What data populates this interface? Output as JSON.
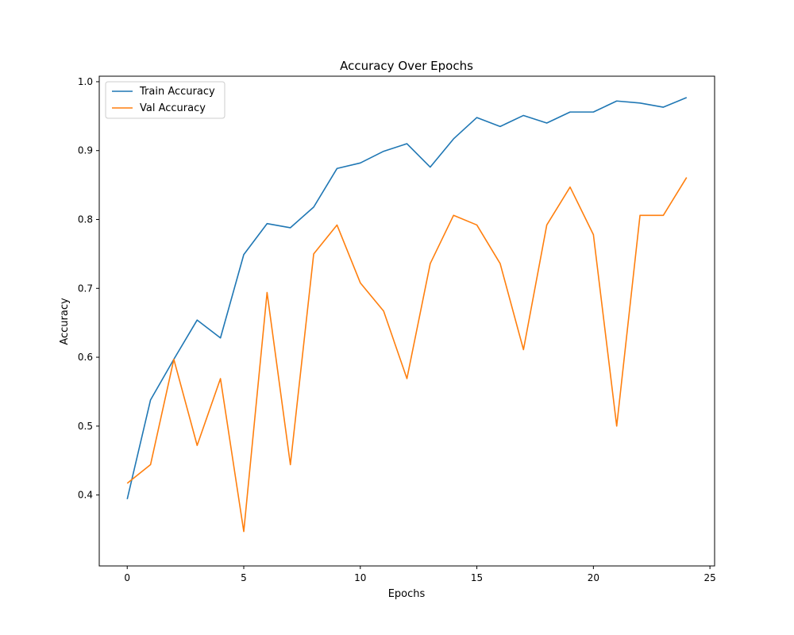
{
  "chart_data": {
    "type": "line",
    "title": "Accuracy Over Epochs",
    "xlabel": "Epochs",
    "ylabel": "Accuracy",
    "xlim": [
      -1.2,
      25.2
    ],
    "ylim": [
      0.297,
      1.008
    ],
    "xticks": [
      0,
      5,
      10,
      15,
      20,
      25
    ],
    "yticks": [
      0.4,
      0.5,
      0.6,
      0.7,
      0.8,
      0.9,
      1.0
    ],
    "grid": false,
    "legend_position": "top-left",
    "x": [
      0,
      1,
      2,
      3,
      4,
      5,
      6,
      7,
      8,
      9,
      10,
      11,
      12,
      13,
      14,
      15,
      16,
      17,
      18,
      19,
      20,
      21,
      22,
      23,
      24
    ],
    "series": [
      {
        "name": "Train Accuracy",
        "color": "#1f77b4",
        "values": [
          0.394,
          0.538,
          0.597,
          0.654,
          0.628,
          0.749,
          0.794,
          0.788,
          0.818,
          0.874,
          0.882,
          0.899,
          0.91,
          0.876,
          0.917,
          0.948,
          0.935,
          0.951,
          0.94,
          0.956,
          0.956,
          0.972,
          0.969,
          0.963,
          0.977
        ]
      },
      {
        "name": "Val Accuracy",
        "color": "#ff7f0e",
        "values": [
          0.417,
          0.444,
          0.597,
          0.472,
          0.569,
          0.347,
          0.694,
          0.444,
          0.75,
          0.792,
          0.708,
          0.667,
          0.569,
          0.736,
          0.806,
          0.792,
          0.736,
          0.611,
          0.792,
          0.847,
          0.778,
          0.5,
          0.806,
          0.806,
          0.861
        ]
      }
    ]
  }
}
